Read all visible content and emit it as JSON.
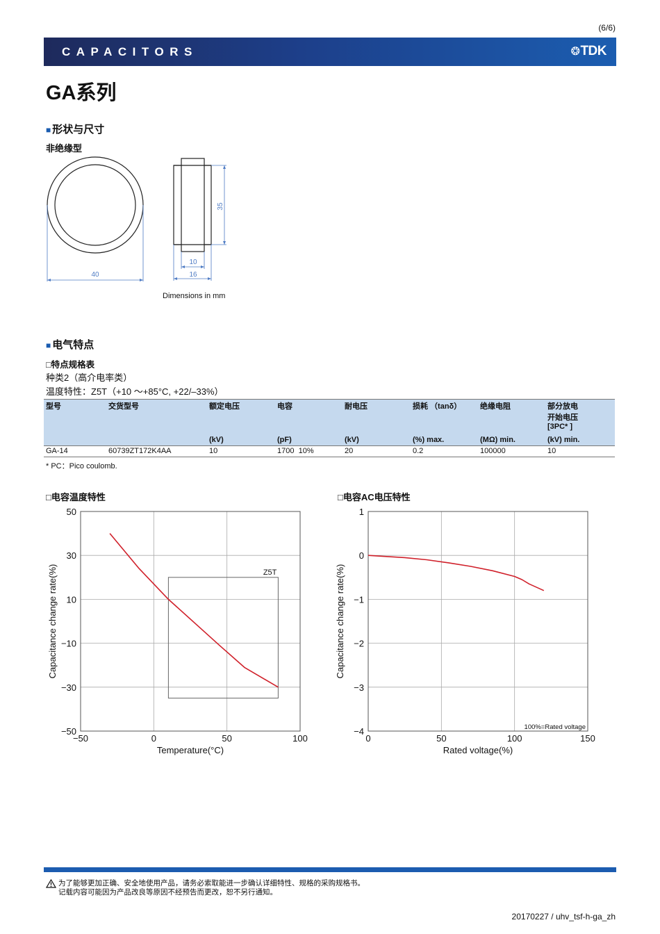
{
  "page_number": "(6/6)",
  "header": {
    "category": "CAPACITORS",
    "logo_glyph": "❂",
    "logo_text": "TDK"
  },
  "title": "GA系列",
  "shape_section": {
    "heading": "形状与尺寸",
    "type_label": "非绝缘型",
    "dims": {
      "diameter": "40",
      "height": "35",
      "inner_width": "10",
      "outer_width": "16"
    },
    "dimensions_note": "Dimensions in mm"
  },
  "electrical_section": {
    "heading": "电气特点",
    "sub_heading": "特点规格表",
    "class_line": "种类2（高介电率类）",
    "temp_line": "温度特性：Z5T（+10 〜+85°C, +22/–33%）",
    "table": {
      "headers": [
        "型号",
        "交货型号",
        "额定电压",
        "电容",
        "耐电压",
        "损耗 （tanδ）",
        "绝缘电阻",
        "部分放电\n开始电压\n[3PC* ]"
      ],
      "units": [
        "",
        "",
        "(kV)",
        "(pF)",
        "(kV)",
        "(%) max.",
        "(MΩ) min.",
        "(kV) min."
      ],
      "rows": [
        [
          "GA-14",
          "60739ZT172K4AA",
          "10",
          "1700  10%",
          "20",
          "0.2",
          "100000",
          "10"
        ]
      ]
    },
    "footnote": "* PC：Pico coulomb."
  },
  "chart_temp_title": "电容温度特性",
  "chart_volt_title": "电容AC电压特性",
  "chart_data": [
    {
      "type": "line",
      "xlabel": "Temperature(°C)",
      "ylabel": "Capacitance change rate(%)",
      "xlim": [
        -50,
        100
      ],
      "ylim": [
        -50,
        50
      ],
      "xticks": [
        -50,
        0,
        50,
        100
      ],
      "yticks": [
        -50,
        -30,
        -10,
        10,
        30,
        50
      ],
      "grid": true,
      "series": [
        {
          "x": [
            -30,
            -10,
            10,
            30,
            45,
            62,
            85
          ],
          "y": [
            40,
            24,
            10,
            -2,
            -11,
            -21,
            -30
          ],
          "color": "#d0202a"
        }
      ],
      "box": {
        "label": "Z5T",
        "x": [
          10,
          85
        ],
        "y": [
          -35,
          20
        ]
      }
    },
    {
      "type": "line",
      "xlabel": "Rated voltage(%)",
      "ylabel": "Capacitance change rate(%)",
      "xlim": [
        0,
        150
      ],
      "ylim": [
        -4,
        1
      ],
      "xticks": [
        0,
        50,
        100,
        150
      ],
      "yticks": [
        -4,
        -3,
        -2,
        -1,
        0,
        1
      ],
      "grid": true,
      "series": [
        {
          "x": [
            0,
            25,
            40,
            55,
            70,
            85,
            100,
            105,
            110,
            120
          ],
          "y": [
            0,
            -0.05,
            -0.1,
            -0.17,
            -0.25,
            -0.35,
            -0.48,
            -0.55,
            -0.65,
            -0.8
          ],
          "color": "#d0202a"
        }
      ],
      "annotation": "100%=Rated voltage"
    }
  ],
  "footer": {
    "warning_icon": "warning-triangle-icon",
    "warning_line1": "为了能够更加正确、安全地使用产品，请务必索取能进一步确认详细特性、规格的采购规格书。",
    "warning_line2": "记载内容可能因为产品改良等原因不经预告而更改，恕不另行通知。",
    "doc_id": "20170227 / uhv_tsf-h-ga_zh"
  }
}
